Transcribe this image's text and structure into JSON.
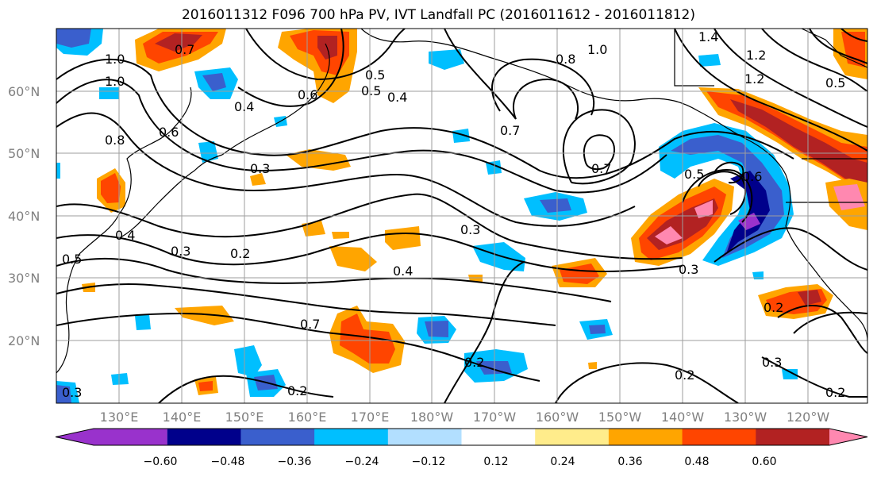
{
  "title": "2016011312 F096 700 hPa PV, IVT Landfall PC (2016011612 - 2016011812)",
  "lat_labels": [
    "60°N",
    "50°N",
    "40°N",
    "30°N",
    "20°N"
  ],
  "lon_labels": [
    "130°E",
    "140°E",
    "150°E",
    "160°E",
    "170°E",
    "180°W",
    "170°W",
    "160°W",
    "150°W",
    "140°W",
    "130°W",
    "120°W"
  ],
  "colorbar": {
    "tick_labels": [
      "−0.60",
      "−0.48",
      "−0.36",
      "−0.24",
      "−0.12",
      "0.12",
      "0.24",
      "0.36",
      "0.48",
      "0.60"
    ],
    "colors": [
      "#9932cc",
      "#00008b",
      "#3a5fcd",
      "#00bfff",
      "#b2dfff",
      "#ffffff",
      "#ffec8b",
      "#ffa500",
      "#ff4500",
      "#b22222",
      "#ff88b0"
    ]
  },
  "contour_labels": [
    "1.0",
    "0.7",
    "1.0",
    "0.8",
    "0.6",
    "0.4",
    "0.5",
    "0.6",
    "0.5",
    "0.4",
    "0.3",
    "1.0",
    "0.8",
    "0.7",
    "0.7",
    "1.4",
    "1.2",
    "1.2",
    "0.5",
    "0.6",
    "0.5",
    "0.3",
    "0.2",
    "0.3",
    "0.5",
    "0.4",
    "0.3",
    "0.4",
    "0.7",
    "0.2",
    "0.2",
    "0.3",
    "0.2",
    "0.2",
    "0.2",
    "0.3"
  ]
}
